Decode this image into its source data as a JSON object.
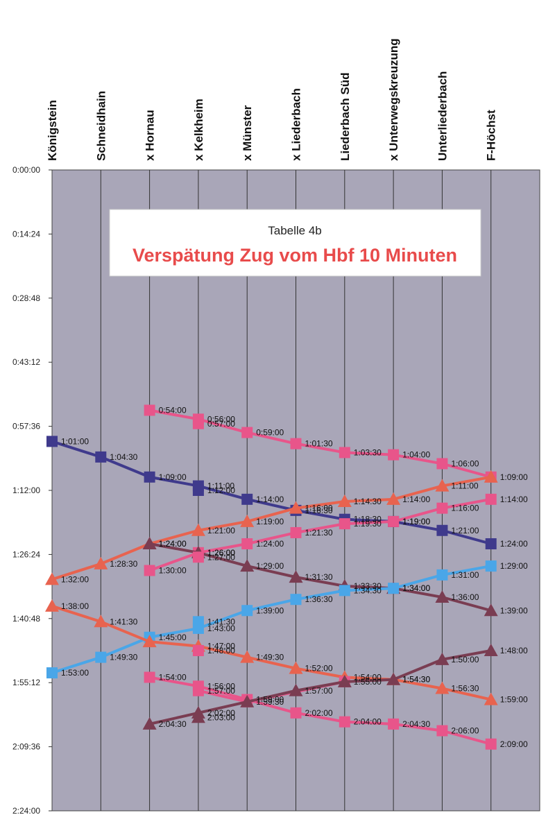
{
  "chart_data": {
    "type": "line",
    "title": "Verspätung Zug vom Hbf 10 Minuten",
    "subtitle": "Tabelle 4b",
    "categories": [
      "Königstein",
      "Schneidhain",
      "x Hornau",
      "x Kelkheim",
      "x Münster",
      "x Liederbach",
      "Liederbach Süd",
      "x Unterwegskreuzung",
      "Unterliederbach",
      "F-Höchst"
    ],
    "y_ticks": [
      "0:00:00",
      "0:14:24",
      "0:28:48",
      "0:43:12",
      "0:57:36",
      "1:12:00",
      "1:26:24",
      "1:40:48",
      "1:55:12",
      "2:09:36",
      "2:24:00"
    ],
    "ylim": [
      "0:00:00",
      "2:24:00"
    ],
    "y_inverted": true,
    "grid": true,
    "plot_background": "#a9a6b8",
    "series": [
      {
        "color": "#e8558a",
        "marker": "square",
        "values": [
          null,
          null,
          "0:54:00",
          "0:56:00",
          "0:59:00",
          "1:01:30",
          "1:03:30",
          "1:04:00",
          "1:06:00",
          "1:09:00"
        ],
        "labels": [
          "",
          "",
          "0:54:00",
          "0:56:00",
          "0:59:00",
          "1:01:30",
          "1:03:30",
          "1:04:00",
          "1:06:00",
          "1:09:00"
        ]
      },
      {
        "color": "#e8558a",
        "marker": "square",
        "values": [
          null,
          null,
          null,
          "0:57:00",
          null,
          null,
          null,
          null,
          null,
          null
        ],
        "labels": [
          "",
          "",
          "",
          "0:57:00",
          "",
          "",
          "",
          "",
          "",
          ""
        ]
      },
      {
        "color": "#3f3a8c",
        "marker": "square",
        "values": [
          "1:01:00",
          "1:04:30",
          "1:09:00",
          "1:11:00",
          "1:14:00",
          "1:16:30",
          "1:18:30",
          "1:19:00",
          "1:21:00",
          "1:24:00"
        ],
        "labels": [
          "1:01:00",
          "1:04:30",
          "1:09:00",
          "1:11:00",
          "1:14:00",
          "1:16:30",
          "1:18:30",
          "1:19:00",
          "1:21:00",
          "1:24:00"
        ]
      },
      {
        "color": "#3f3a8c",
        "marker": "square",
        "values": [
          null,
          null,
          null,
          "1:12:00",
          null,
          null,
          null,
          null,
          null,
          null
        ],
        "labels": [
          "",
          "",
          "",
          "1:12:00",
          "",
          "",
          "",
          "",
          "",
          ""
        ]
      },
      {
        "color": "#e8634f",
        "marker": "triangle",
        "values": [
          "1:32:00",
          "1:28:30",
          "1:24:00",
          "1:21:00",
          "1:19:00",
          "1:16:00",
          "1:14:30",
          "1:14:00",
          "1:11:00",
          "1:09:00"
        ],
        "labels": [
          "1:32:00",
          "1:28:30",
          "1:24:00",
          "1:21:00",
          "1:19:00",
          "1:16:00",
          "1:14:30",
          "1:14:00",
          "1:11:00",
          ""
        ]
      },
      {
        "color": "#e8558a",
        "marker": "square",
        "values": [
          null,
          null,
          "1:30:00",
          "1:26:00",
          "1:24:00",
          "1:21:30",
          "1:19:30",
          "1:19:00",
          "1:16:00",
          "1:14:00"
        ],
        "labels": [
          "",
          "",
          "1:30:00",
          "1:26:00",
          "1:24:00",
          "1:21:30",
          "1:19:30",
          "1:19:00",
          "1:16:00",
          "1:14:00"
        ]
      },
      {
        "color": "#7a3d52",
        "marker": "triangle",
        "values": [
          null,
          null,
          "1:24:00",
          "1:26:00",
          "1:29:00",
          "1:31:30",
          "1:33:30",
          "1:34:00",
          "1:36:00",
          "1:39:00"
        ],
        "labels": [
          "",
          "",
          "1:24:00",
          "1:26:00",
          "1:29:00",
          "1:31:30",
          "1:33:30",
          "1:34:00",
          "1:36:00",
          "1:39:00"
        ]
      },
      {
        "color": "#e8558a",
        "marker": "square",
        "values": [
          null,
          null,
          null,
          "1:27:00",
          null,
          null,
          null,
          null,
          null,
          null
        ],
        "labels": [
          "",
          "",
          "",
          "1:27:00",
          "",
          "",
          "",
          "",
          "",
          ""
        ]
      },
      {
        "color": "#4aa6e8",
        "marker": "square",
        "values": [
          "1:53:00",
          "1:49:30",
          "1:45:00",
          "1:43:00",
          "1:39:00",
          "1:36:30",
          "1:34:30",
          "1:34:00",
          "1:31:00",
          "1:29:00"
        ],
        "labels": [
          "1:53:00",
          "1:49:30",
          "1:45:00",
          "1:43:00",
          "1:39:00",
          "1:36:30",
          "1:34:30",
          "1:34:00",
          "1:31:00",
          "1:29:00"
        ]
      },
      {
        "color": "#4aa6e8",
        "marker": "square",
        "values": [
          null,
          null,
          null,
          "1:41:30",
          null,
          null,
          null,
          null,
          null,
          null
        ],
        "labels": [
          "",
          "",
          "",
          "1:41:30",
          "",
          "",
          "",
          "",
          "",
          ""
        ]
      },
      {
        "color": "#e8634f",
        "marker": "triangle",
        "values": [
          "1:38:00",
          "1:41:30",
          "1:46:00",
          "1:47:00",
          "1:49:30",
          "1:52:00",
          "1:54:00",
          "1:54:30",
          "1:56:30",
          "1:59:00"
        ],
        "labels": [
          "1:38:00",
          "1:41:30",
          "",
          "1:47:00",
          "1:49:30",
          "1:52:00",
          "1:54:00",
          "1:54:30",
          "1:56:30",
          "1:59:00"
        ]
      },
      {
        "color": "#e8558a",
        "marker": "square",
        "values": [
          null,
          null,
          null,
          "1:48:00",
          null,
          null,
          null,
          null,
          null,
          null
        ],
        "labels": [
          "",
          "",
          "",
          "1:48:00",
          "",
          "",
          "",
          "",
          "",
          ""
        ]
      },
      {
        "color": "#e8558a",
        "marker": "square",
        "values": [
          null,
          null,
          "1:54:00",
          "1:56:00",
          "1:59:00",
          "2:02:00",
          "2:04:00",
          "2:04:30",
          "2:06:00",
          "2:09:00"
        ],
        "labels": [
          "",
          "",
          "1:54:00",
          "1:56:00",
          "1:59:00",
          "2:02:00",
          "2:04:00",
          "2:04:30",
          "2:06:00",
          "2:09:00"
        ]
      },
      {
        "color": "#e8558a",
        "marker": "square",
        "values": [
          null,
          null,
          null,
          "1:57:00",
          "1:59:30",
          null,
          "1:55:00",
          null,
          null,
          null
        ],
        "labels": [
          "",
          "",
          "",
          "1:57:00",
          "1:59:30",
          "",
          "1:55:00",
          "",
          "",
          ""
        ]
      },
      {
        "color": "#7a3d52",
        "marker": "triangle",
        "values": [
          null,
          null,
          "2:04:30",
          "2:02:00",
          "1:59:30",
          "1:57:00",
          "1:55:00",
          "1:54:30",
          "1:50:00",
          "1:48:00"
        ],
        "labels": [
          "",
          "",
          "2:04:30",
          "2:02:00",
          "",
          "1:57:00",
          "",
          "1:54:30",
          "1:50:00",
          "1:48:00"
        ]
      },
      {
        "color": "#7a3d52",
        "marker": "triangle",
        "values": [
          null,
          null,
          null,
          "2:03:00",
          null,
          null,
          null,
          null,
          null,
          null
        ],
        "labels": [
          "",
          "",
          "",
          "2:03:00",
          "",
          "",
          "",
          "",
          "",
          ""
        ]
      }
    ]
  }
}
